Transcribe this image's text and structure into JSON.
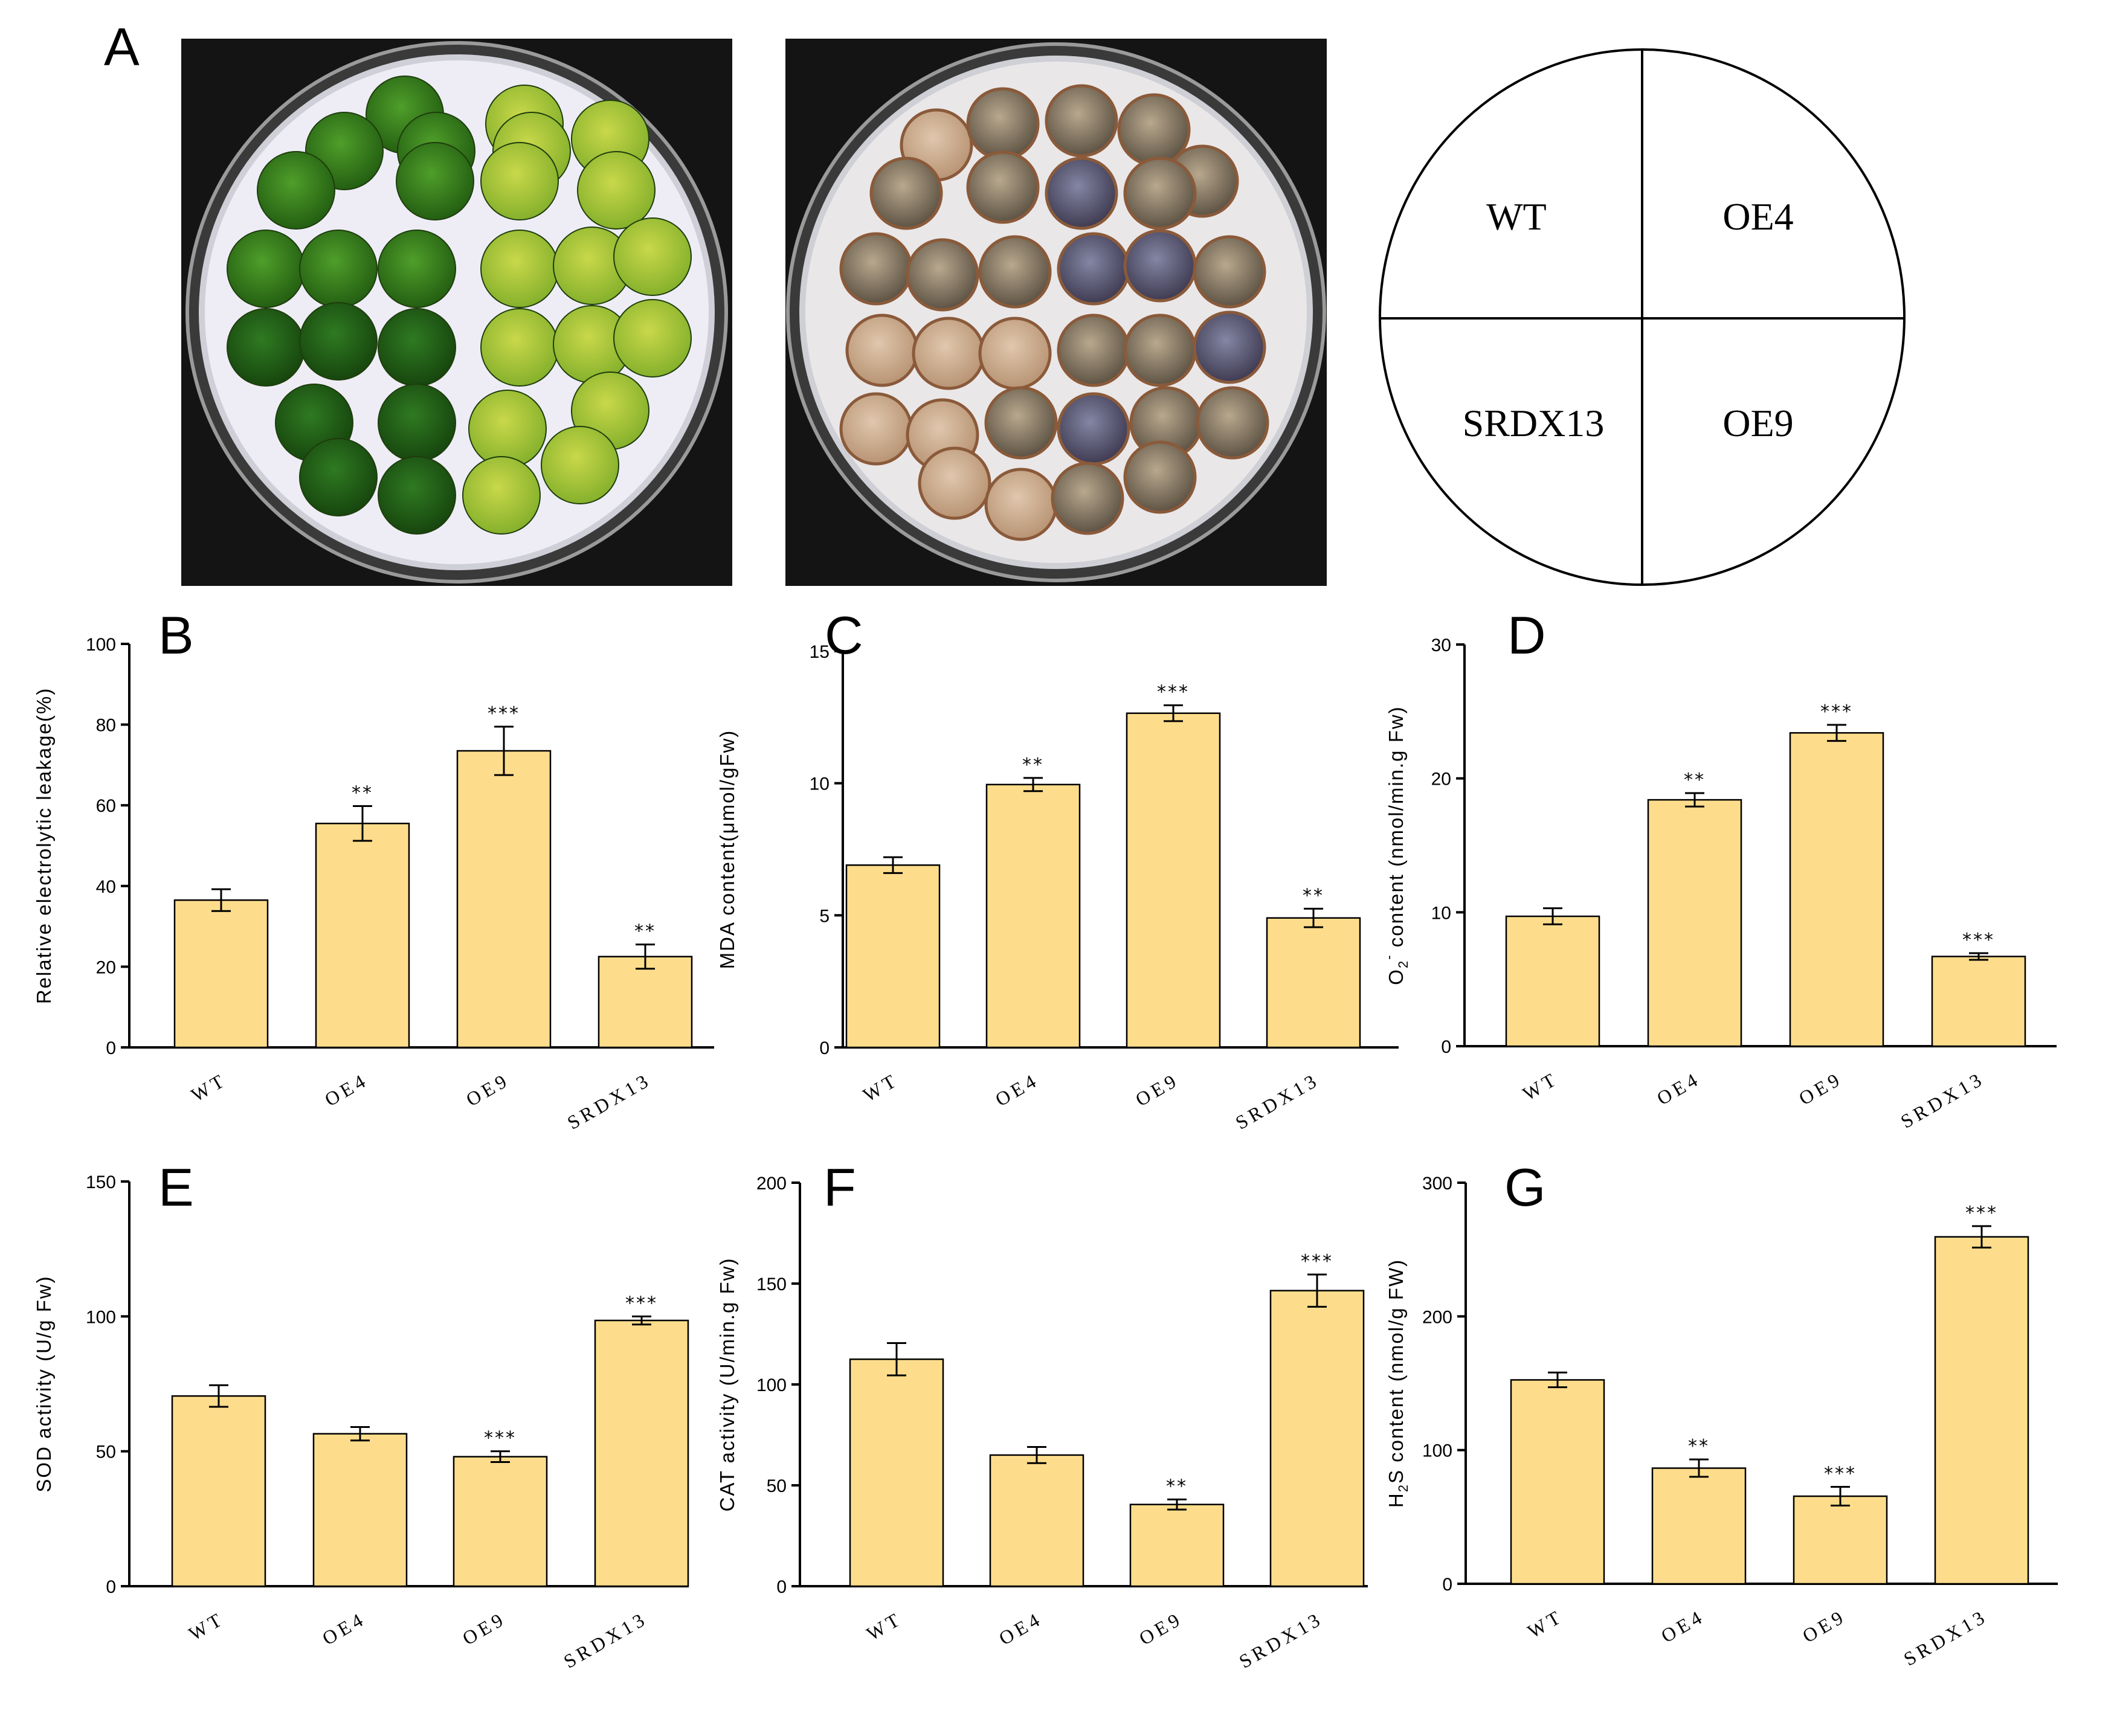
{
  "figure": {
    "panel_a_letter": "A",
    "colors": {
      "bar_fill": "#FDDD8C",
      "bar_stroke": "#000000",
      "axis": "#000000"
    }
  },
  "plate_legend": {
    "top_left": "WT",
    "top_right": "OE4",
    "bottom_left": "SRDX13",
    "bottom_right": "OE9"
  },
  "chart_data": [
    {
      "panel": "B",
      "type": "bar",
      "categories": [
        "WT",
        "OE4",
        "OE9",
        "SRDX13"
      ],
      "values": [
        36.5,
        55.5,
        73.5,
        22.5
      ],
      "errors": [
        2.7,
        4.3,
        6,
        3
      ],
      "significance": [
        "",
        "**",
        "***",
        "**"
      ],
      "ylabel": "Relative electrolytic leakage(%)",
      "ylim": [
        0,
        100
      ],
      "yticks": [
        0,
        20,
        40,
        60,
        80,
        100
      ]
    },
    {
      "panel": "C",
      "type": "bar",
      "categories": [
        "WT",
        "OE4",
        "OE9",
        "SRDX13"
      ],
      "values": [
        6.9,
        9.95,
        12.65,
        4.9
      ],
      "errors": [
        0.3,
        0.25,
        0.3,
        0.35
      ],
      "significance": [
        "",
        "**",
        "***",
        "**"
      ],
      "ylabel": "MDA content(μmol/gFw)",
      "ylim": [
        0,
        15
      ],
      "yticks": [
        0,
        5,
        10,
        15
      ]
    },
    {
      "panel": "D",
      "type": "bar",
      "categories": [
        "WT",
        "OE4",
        "OE9",
        "SRDX13"
      ],
      "values": [
        9.7,
        18.4,
        23.4,
        6.7
      ],
      "errors": [
        0.6,
        0.5,
        0.6,
        0.25
      ],
      "significance": [
        "",
        "**",
        "***",
        "***"
      ],
      "ylabel_parts": [
        "O",
        "2",
        "-",
        " content (nmol/min.g Fw)"
      ],
      "ylim": [
        0,
        30
      ],
      "yticks": [
        0,
        10,
        20,
        30
      ]
    },
    {
      "panel": "E",
      "type": "bar",
      "categories": [
        "WT",
        "OE4",
        "OE9",
        "SRDX13"
      ],
      "values": [
        70.5,
        56.5,
        48,
        98.5
      ],
      "errors": [
        4,
        2.5,
        2,
        1.5
      ],
      "significance": [
        "",
        "",
        "***",
        "***"
      ],
      "ylabel": "SOD activity (U/g Fw)",
      "ylim": [
        0,
        150
      ],
      "yticks": [
        0,
        50,
        100,
        150
      ]
    },
    {
      "panel": "F",
      "type": "bar",
      "categories": [
        "WT",
        "OE4",
        "OE9",
        "SRDX13"
      ],
      "values": [
        112.5,
        65,
        40.5,
        146.5
      ],
      "errors": [
        8,
        4,
        2.5,
        8
      ],
      "significance": [
        "",
        "",
        "**",
        "***"
      ],
      "ylabel": "CAT activity (U/min.g Fw)",
      "ylim": [
        0,
        200
      ],
      "yticks": [
        0,
        50,
        100,
        150,
        200
      ]
    },
    {
      "panel": "G",
      "type": "bar",
      "categories": [
        "WT",
        "OE4",
        "OE9",
        "SRDX13"
      ],
      "values": [
        152.5,
        86.5,
        65.5,
        259.5
      ],
      "errors": [
        5.5,
        6.5,
        7,
        8
      ],
      "significance": [
        "",
        "**",
        "***",
        "***"
      ],
      "ylabel_parts": [
        "H",
        "2",
        "",
        "S content (nmol/g FW)"
      ],
      "ylim": [
        0,
        300
      ],
      "yticks": [
        0,
        100,
        200,
        300
      ]
    }
  ]
}
